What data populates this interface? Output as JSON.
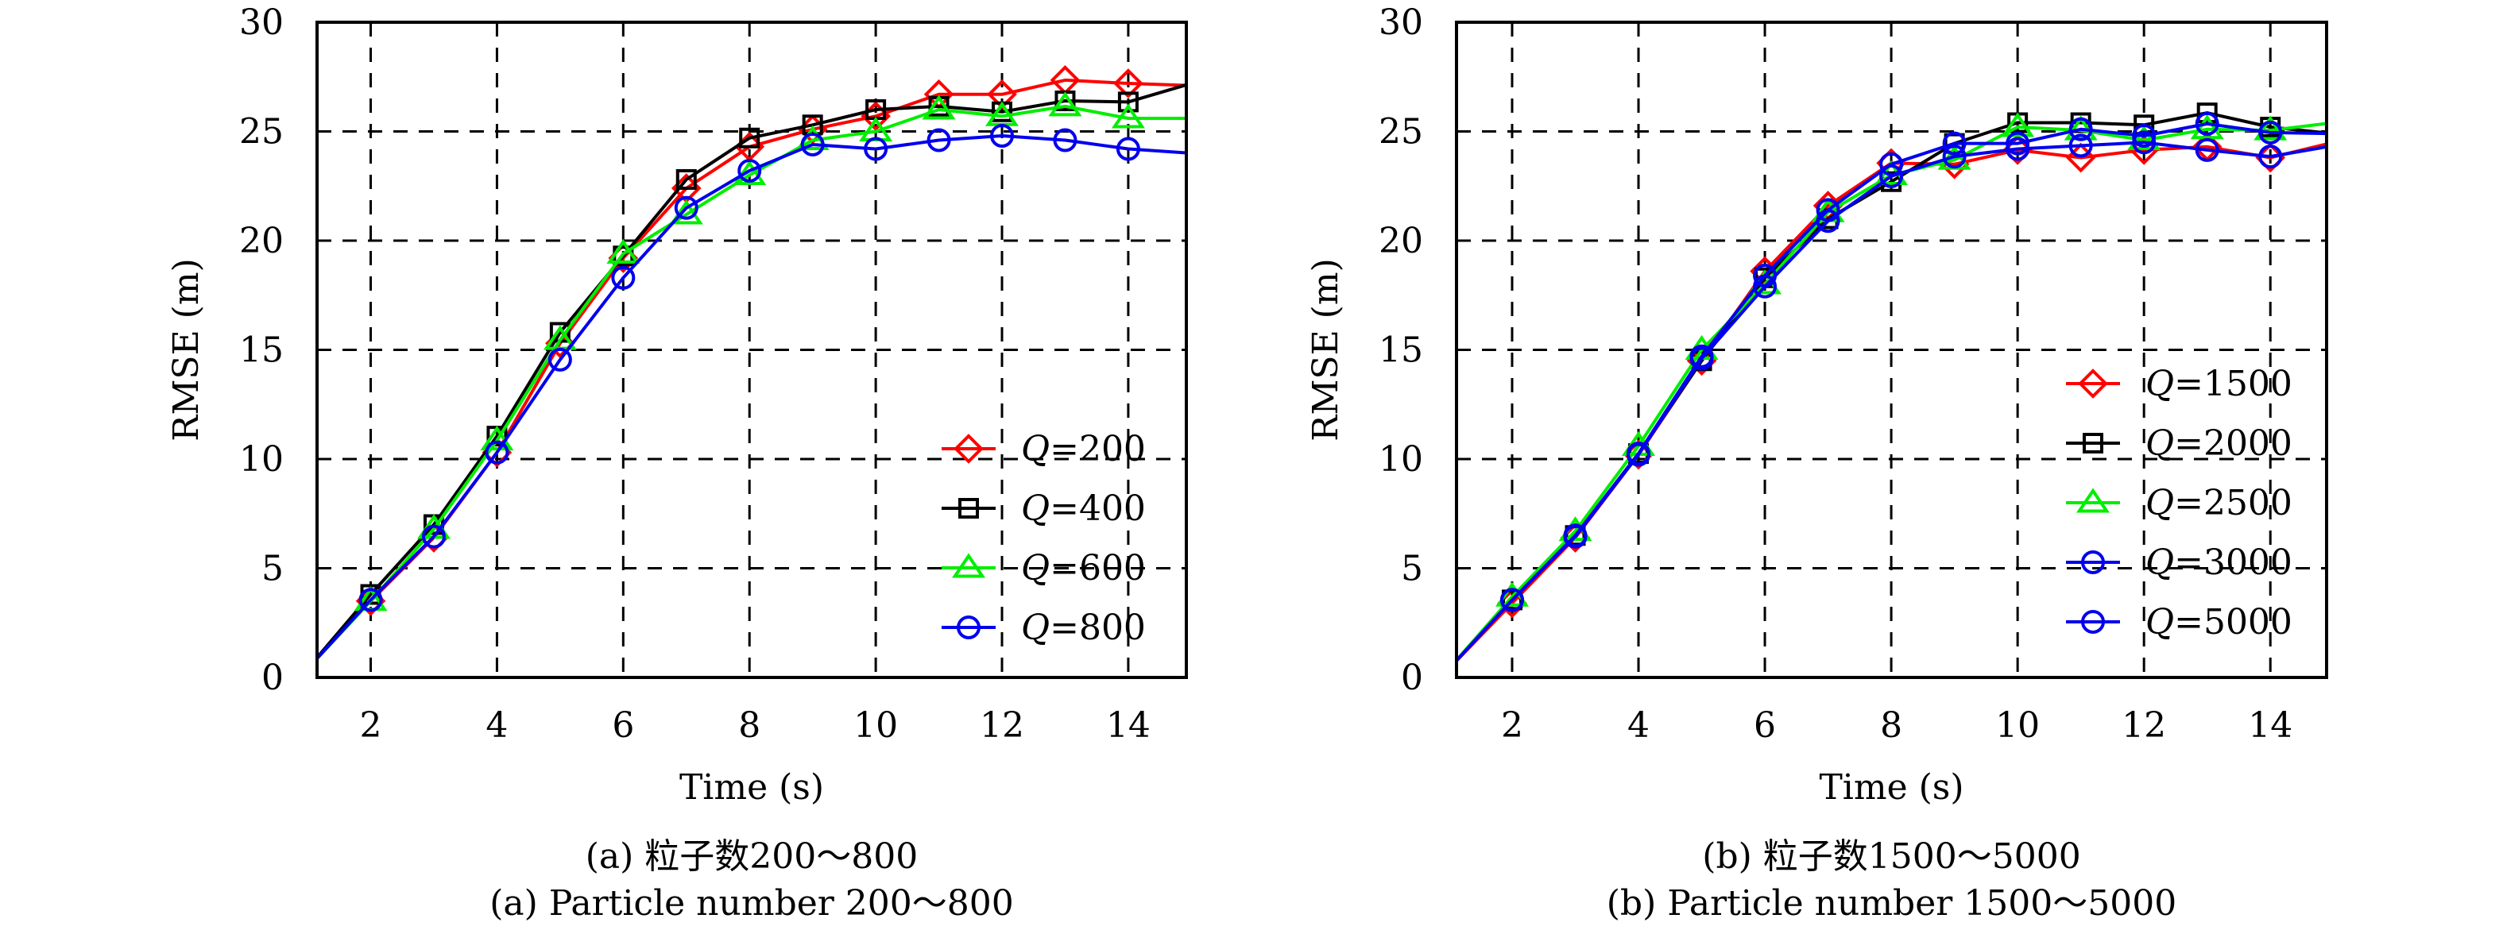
{
  "chart_data": [
    {
      "id": "a",
      "type": "line",
      "xlabel": "Time (s)",
      "ylabel": "RMSE (m)",
      "xlim": [
        1.15,
        14.92
      ],
      "ylim": [
        0,
        30
      ],
      "xticks": [
        2,
        4,
        6,
        8,
        10,
        12,
        14
      ],
      "yticks": [
        0,
        5,
        10,
        15,
        20,
        25,
        30
      ],
      "xtick_labels": [
        "2",
        "4",
        "6",
        "8",
        "10",
        "12",
        "14"
      ],
      "ytick_labels": [
        "0",
        "5",
        "10",
        "15",
        "20",
        "25",
        "30"
      ],
      "grid": true,
      "legend_position": "center-right",
      "caption_cn": "(a) 粒子数200～800",
      "caption_en": "(a) Particle number 200～800",
      "x": [
        1,
        2,
        3,
        4,
        5,
        6,
        7,
        8,
        9,
        10,
        11,
        12,
        13,
        14,
        15
      ],
      "series": [
        {
          "name": "Q=200",
          "q_symbol": "Q",
          "q_value": "=200",
          "color": "#ff0000",
          "marker": "diamond",
          "values": [
            0.4,
            3.5,
            6.4,
            10.3,
            15.3,
            19.2,
            22.4,
            24.3,
            25.1,
            25.7,
            26.7,
            26.7,
            27.35,
            27.2,
            27.1
          ]
        },
        {
          "name": "Q=400",
          "q_symbol": "Q",
          "q_value": "=400",
          "color": "#000000",
          "marker": "square",
          "values": [
            0.4,
            3.8,
            7.0,
            11.05,
            15.8,
            19.3,
            22.8,
            24.7,
            25.3,
            26.0,
            26.15,
            25.9,
            26.4,
            26.35,
            27.2
          ]
        },
        {
          "name": "Q=600",
          "q_symbol": "Q",
          "q_value": "=600",
          "color": "#00ee00",
          "marker": "triangle",
          "values": [
            0.4,
            3.5,
            6.8,
            10.85,
            15.45,
            19.4,
            21.2,
            23.0,
            24.6,
            25.0,
            26.0,
            25.7,
            26.15,
            25.6,
            25.6
          ]
        },
        {
          "name": "Q=800",
          "q_symbol": "Q",
          "q_value": "=800",
          "color": "#0000ee",
          "marker": "circle",
          "values": [
            0.4,
            3.55,
            6.45,
            10.3,
            14.55,
            18.3,
            21.5,
            23.2,
            24.4,
            24.2,
            24.6,
            24.8,
            24.6,
            24.2,
            24.0
          ]
        }
      ]
    },
    {
      "id": "b",
      "type": "line",
      "xlabel": "Time (s)",
      "ylabel": "RMSE (m)",
      "xlim": [
        1.12,
        14.89
      ],
      "ylim": [
        0,
        30
      ],
      "xticks": [
        2,
        4,
        6,
        8,
        10,
        12,
        14
      ],
      "yticks": [
        0,
        5,
        10,
        15,
        20,
        25,
        30
      ],
      "xtick_labels": [
        "2",
        "4",
        "6",
        "8",
        "10",
        "12",
        "14"
      ],
      "ytick_labels": [
        "0",
        "5",
        "10",
        "15",
        "20",
        "25",
        "30"
      ],
      "grid": true,
      "legend_position": "center-right",
      "caption_cn": "(b) 粒子数1500～5000",
      "caption_en": "(b) Particle number 1500～5000",
      "x": [
        1,
        2,
        3,
        4,
        5,
        6,
        7,
        8,
        9,
        10,
        11,
        12,
        13,
        14,
        15
      ],
      "series": [
        {
          "name": "Q=1500",
          "q_symbol": "Q",
          "q_value": "=1500",
          "color": "#ff0000",
          "marker": "diamond",
          "values": [
            0.4,
            3.4,
            6.4,
            10.2,
            14.5,
            18.6,
            21.6,
            23.55,
            23.5,
            24.15,
            23.8,
            24.15,
            24.3,
            23.8,
            24.5
          ]
        },
        {
          "name": "Q=2000",
          "q_symbol": "Q",
          "q_value": "=2000",
          "color": "#000000",
          "marker": "square",
          "values": [
            0.4,
            3.55,
            6.5,
            10.25,
            14.5,
            18.3,
            21.0,
            22.7,
            24.45,
            25.4,
            25.4,
            25.3,
            25.85,
            25.2,
            24.9
          ]
        },
        {
          "name": "Q=2500",
          "q_symbol": "Q",
          "q_value": "=2500",
          "color": "#00ee00",
          "marker": "triangle",
          "values": [
            0.4,
            3.7,
            6.7,
            10.6,
            15.0,
            18.0,
            21.3,
            23.0,
            23.7,
            25.2,
            25.05,
            24.6,
            25.1,
            25.05,
            25.4
          ]
        },
        {
          "name": "Q=3000",
          "q_symbol": "Q",
          "q_value": "=3000",
          "color": "#0000ee",
          "marker": "circle",
          "values": [
            0.4,
            3.55,
            6.5,
            10.25,
            14.7,
            18.4,
            21.4,
            23.5,
            24.45,
            24.45,
            25.1,
            24.8,
            25.35,
            24.95,
            24.9
          ]
        },
        {
          "name": "Q=5000",
          "q_symbol": "Q",
          "q_value": "=5000",
          "color": "#0000ee",
          "marker": "circle",
          "values": [
            0.4,
            3.55,
            6.45,
            10.2,
            14.6,
            17.9,
            20.9,
            22.95,
            23.85,
            24.2,
            24.35,
            24.5,
            24.15,
            23.85,
            24.35
          ]
        }
      ]
    }
  ]
}
